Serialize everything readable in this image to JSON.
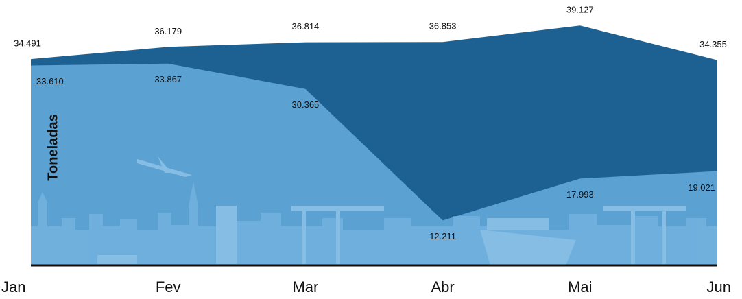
{
  "chart_data": {
    "type": "area",
    "y_label": "Toneladas",
    "categories": [
      "Jan",
      "Fev",
      "Mar",
      "Abr",
      "Mai",
      "Jun"
    ],
    "ylim": [
      6000,
      40000
    ],
    "series": [
      {
        "color": "#1d6193",
        "values": [
          34491,
          36179,
          36814,
          36853,
          39127,
          34355
        ],
        "value_labels": [
          "34.491",
          "36.179",
          "36.814",
          "36.853",
          "39.127",
          "34.355"
        ]
      },
      {
        "color": "#5ba2d3",
        "values": [
          33610,
          33867,
          30365,
          12211,
          17993,
          19021
        ],
        "value_labels": [
          "33.610",
          "33.867",
          "30.365",
          "12.211",
          "17.993",
          "19.021"
        ]
      }
    ]
  }
}
